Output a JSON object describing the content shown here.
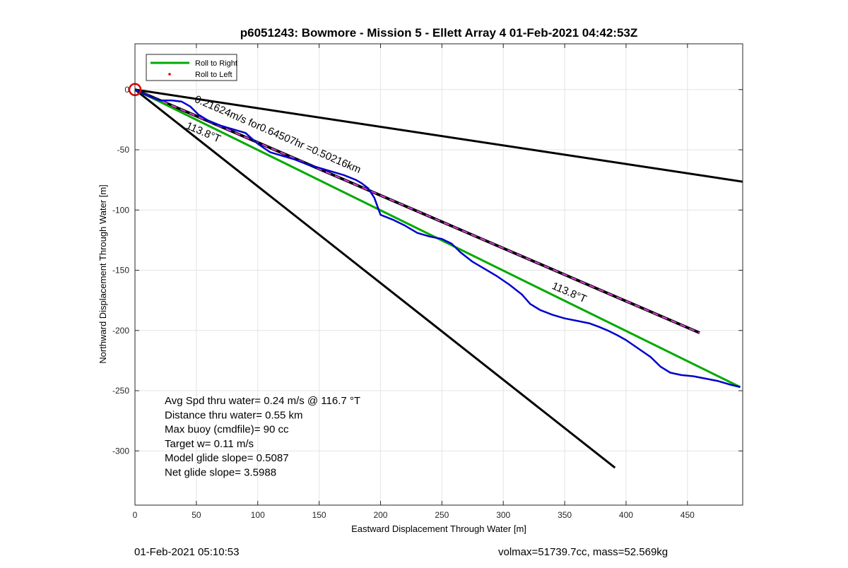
{
  "chart_data": {
    "type": "line",
    "title": "p6051243: Bowmore - Mission 5 - Ellett Array 4 01-Feb-2021 04:42:53Z",
    "xlabel": "Eastward Displacement Through Water [m]",
    "ylabel": "Northward Displacement Through Water [m]",
    "xlim": [
      0,
      495
    ],
    "ylim": [
      -345,
      38
    ],
    "xticks": [
      0,
      50,
      100,
      150,
      200,
      250,
      300,
      350,
      400,
      450
    ],
    "yticks": [
      0,
      -50,
      -100,
      -150,
      -200,
      -250,
      -300
    ],
    "grid": true,
    "legend_position": "top-left",
    "legend": [
      {
        "label": "Roll to Right",
        "color": "#00aa00",
        "style": "line"
      },
      {
        "label": "Roll to Left",
        "color": "#dd0000",
        "style": "dot"
      }
    ],
    "series": [
      {
        "key": "cone_upper",
        "color": "#000000",
        "width": 3,
        "dash": "",
        "x": [
          0,
          495
        ],
        "y": [
          0,
          -76.5
        ]
      },
      {
        "key": "cone_lower",
        "color": "#000000",
        "width": 3,
        "dash": "",
        "x": [
          0,
          391
        ],
        "y": [
          0,
          -314
        ]
      },
      {
        "key": "heading_black",
        "color": "#000000",
        "width": 4,
        "dash": "",
        "x": [
          0,
          460
        ],
        "y": [
          0,
          -202
        ]
      },
      {
        "key": "heading_magenta",
        "color": "#e040e0",
        "width": 2,
        "dash": "8,6",
        "x": [
          0,
          460
        ],
        "y": [
          0,
          -202
        ]
      },
      {
        "key": "roll_right",
        "color": "#00aa00",
        "width": 3,
        "dash": "",
        "x": [
          0,
          493
        ],
        "y": [
          0,
          -247
        ]
      },
      {
        "key": "track",
        "color": "#0000cc",
        "width": 2.5,
        "dash": "",
        "x": [
          0,
          10,
          20,
          30,
          38,
          45,
          52,
          60,
          70,
          80,
          90,
          100,
          110,
          120,
          130,
          140,
          150,
          160,
          170,
          180,
          185,
          190,
          195,
          200,
          210,
          220,
          230,
          240,
          250,
          258,
          265,
          275,
          285,
          295,
          305,
          315,
          322,
          330,
          340,
          350,
          360,
          370,
          378,
          385,
          393,
          400,
          410,
          420,
          428,
          436,
          445,
          455,
          465,
          475,
          485,
          493
        ],
        "y": [
          0,
          -5,
          -9,
          -9,
          -10,
          -14,
          -21,
          -26,
          -30,
          -33,
          -36,
          -45,
          -52,
          -55,
          -58,
          -62,
          -65,
          -68,
          -71,
          -75,
          -78,
          -82,
          -90,
          -104,
          -108,
          -113,
          -119,
          -122,
          -124,
          -128,
          -135,
          -143,
          -149,
          -155,
          -162,
          -170,
          -178,
          -183,
          -187,
          -190,
          -192,
          -194,
          -197,
          -200,
          -204,
          -208,
          -215,
          -222,
          -230,
          -235,
          -237,
          -238,
          -240,
          -242,
          -245,
          -247
        ]
      }
    ],
    "markers": [
      {
        "key": "start_circle",
        "x": 0,
        "y": 0,
        "color": "#dd0000"
      }
    ],
    "annotations": [
      {
        "text": "0.21624m/s for0.64507hr =0.50216km",
        "x": 48,
        "y": -10,
        "rotate": 23.5
      },
      {
        "text": "113.8°T",
        "x": 41,
        "y": -32,
        "rotate": 23.5
      },
      {
        "text": "113.8°T",
        "x": 339,
        "y": -165,
        "rotate": 23.5
      }
    ],
    "info_lines": [
      "Avg Spd thru water=  0.24 m/s @ 116.7 °T",
      "Distance thru water=  0.55 km",
      "Max buoy (cmdfile)= 90 cc",
      "Target w= 0.11 m/s",
      "Model glide slope= 0.5087",
      "Net glide slope= 3.5988"
    ]
  },
  "footer": {
    "left": "01-Feb-2021 05:10:53",
    "right": "volmax=51739.7cc, mass=52.569kg"
  }
}
